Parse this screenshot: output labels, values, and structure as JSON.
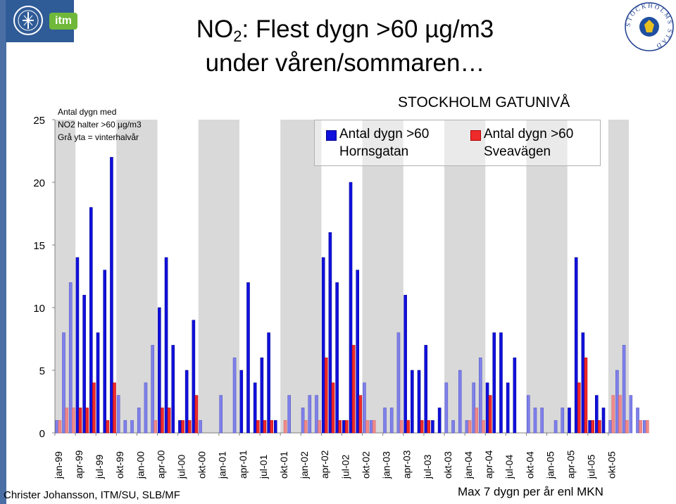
{
  "title": {
    "prefix": "NO",
    "subscript": "2",
    "line1_rest": ": Flest dygn >60 µg/m3",
    "line2": "under våren/sommaren…"
  },
  "logo": {
    "itm_label": "itm"
  },
  "seal": {
    "text": "STOCKHOLMS STAD"
  },
  "note": {
    "line1": "Antal dygn med",
    "line2": "NO2 halter >60 µg/m3",
    "line3": "Grå yta = vinterhalvår"
  },
  "panel_title": "STOCKHOLM GATUNIVÅ",
  "legend": {
    "hornsgatan_line1": "Antal dygn >60",
    "hornsgatan_line2": "Hornsgatan",
    "sveavagen_line1": "Antal dygn >60",
    "sveavagen_line2": "Sveavägen"
  },
  "footer": {
    "author": "Christer Johansson, ITM/SU, SLB/MF",
    "note": "Max 7 dygn per år enl MKN"
  },
  "colors": {
    "hornsgatan": "#1010dd",
    "sveavagen": "#ee2a2a",
    "winter_band": "#d9d9d9"
  },
  "chart_data": {
    "type": "bar",
    "title": "NO2: Flest dygn >60 µg/m3 under våren/sommaren…",
    "xlabel": "",
    "ylabel": "Antal dygn med NO2 halter >60 µg/m3",
    "ylim": [
      0,
      25
    ],
    "yticks": [
      0,
      5,
      10,
      15,
      20,
      25
    ],
    "months_start": "jan-99",
    "x_tick_labels": [
      "jan-99",
      "apr-99",
      "jul-99",
      "okt-99",
      "jan-00",
      "apr-00",
      "jul-00",
      "okt-00",
      "jan-01",
      "apr-01",
      "jul-01",
      "okt-01",
      "jan-02",
      "apr-02",
      "jul-02",
      "okt-02",
      "jan-03",
      "apr-03",
      "jul-03",
      "okt-03",
      "jan-04",
      "apr-04",
      "jul-04",
      "okt-04",
      "jan-05",
      "apr-05",
      "jul-05",
      "okt-05"
    ],
    "shading": "winter half-year (okt-mar) shaded grey",
    "series": [
      {
        "name": "Antal dygn >60 Hornsgatan",
        "values": [
          1,
          8,
          12,
          14,
          11,
          18,
          8,
          13,
          22,
          3,
          1,
          1,
          2,
          4,
          7,
          10,
          14,
          7,
          1,
          5,
          9,
          1,
          0,
          0,
          3,
          0,
          6,
          5,
          12,
          4,
          6,
          8,
          1,
          0,
          3,
          0,
          2,
          3,
          3,
          14,
          16,
          12,
          1,
          20,
          13,
          4,
          1,
          0,
          2,
          2,
          8,
          11,
          5,
          5,
          7,
          1,
          2,
          4,
          1,
          5,
          1,
          4,
          6,
          4,
          8,
          8,
          4,
          6,
          0,
          3,
          2,
          2,
          0,
          1,
          2,
          2,
          14,
          8,
          1,
          3,
          2,
          1,
          5,
          7,
          3,
          2,
          1
        ]
      },
      {
        "name": "Antal dygn >60 Sveavägen",
        "values": [
          1,
          2,
          2,
          2,
          2,
          4,
          0,
          1,
          4,
          0,
          0,
          0,
          0,
          0,
          1,
          2,
          2,
          0,
          1,
          1,
          3,
          0,
          0,
          0,
          0,
          0,
          0,
          0,
          0,
          1,
          1,
          1,
          0,
          1,
          0,
          0,
          1,
          0,
          1,
          6,
          4,
          1,
          1,
          7,
          3,
          1,
          1,
          0,
          0,
          0,
          1,
          1,
          0,
          1,
          1,
          0,
          0,
          0,
          0,
          0,
          1,
          2,
          1,
          3,
          0,
          0,
          0,
          0,
          0,
          0,
          0,
          0,
          0,
          0,
          0,
          0,
          4,
          6,
          1,
          1,
          0,
          3,
          3,
          1,
          0,
          1,
          1
        ]
      }
    ],
    "legend_position": "top-right",
    "annotations": [
      "STOCKHOLM GATUNIVÅ",
      "Max 7 dygn per år enl MKN"
    ]
  }
}
